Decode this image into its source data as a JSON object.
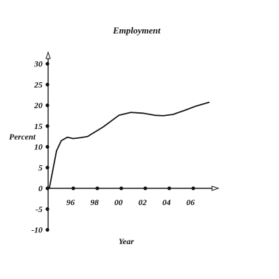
{
  "chart_data": {
    "type": "line",
    "title": "Employment",
    "xlabel": "Year",
    "ylabel": "Percent",
    "x_tick_labels": [
      "96",
      "98",
      "00",
      "02",
      "04",
      "06"
    ],
    "x_tick_values": [
      1996,
      1998,
      2000,
      2002,
      2004,
      2006
    ],
    "y_tick_values": [
      -10,
      -5,
      0,
      5,
      10,
      15,
      20,
      25,
      30
    ],
    "y_tick_labels": [
      "-10",
      "-5",
      "0",
      "5",
      "10",
      "15",
      "20",
      "25",
      "30"
    ],
    "xlim": [
      1993.9,
      2008.4
    ],
    "ylim": [
      -10,
      30
    ],
    "grid": false,
    "series": [
      {
        "x": [
          1994.0,
          1994.6,
          1995.0,
          1995.5,
          1996.0,
          1996.6,
          1997.2,
          1998.5,
          1999.8,
          2000.8,
          2001.8,
          2002.8,
          2003.5,
          2004.3,
          2005.3,
          2006.2,
          2007.3
        ],
        "values": [
          0.0,
          9.0,
          11.5,
          12.3,
          12.0,
          12.2,
          12.5,
          14.8,
          17.6,
          18.3,
          18.1,
          17.6,
          17.5,
          17.8,
          18.8,
          19.8,
          20.7
        ],
        "color": "#111111"
      }
    ]
  }
}
